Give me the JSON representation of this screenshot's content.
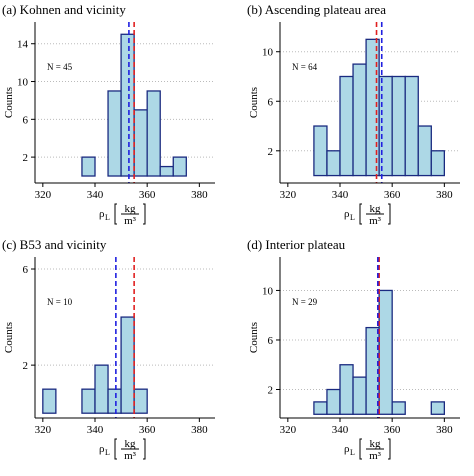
{
  "chart_data": [
    {
      "type": "histogram",
      "title": "(a) Kohnen and vicinity",
      "annotation": "N = 45",
      "ylabel": "Counts",
      "xlabel": {
        "symbol": "ρ",
        "subscript": "L",
        "unit_num": "kg",
        "unit_den": "m³"
      },
      "bins": [
        320,
        325,
        330,
        335,
        340,
        345,
        350,
        355,
        360,
        365,
        370,
        375,
        380,
        385
      ],
      "values": [
        0,
        0,
        0,
        2,
        0,
        9,
        15,
        7,
        9,
        1,
        2,
        0,
        0
      ],
      "vlines": [
        {
          "value": 355,
          "color": "#e02020"
        },
        {
          "value": 353,
          "color": "#2020e0"
        }
      ],
      "xlim": [
        317,
        386
      ],
      "xticks": [
        320,
        340,
        360,
        380
      ],
      "ylim": [
        -0.74,
        16.3
      ],
      "yticks": [
        2,
        6,
        10,
        14
      ],
      "grid": true,
      "fill": "#add8e6",
      "edge": "#1a2a80"
    },
    {
      "type": "histogram",
      "title": "(b) Ascending plateau area",
      "annotation": "N = 64",
      "ylabel": "Counts",
      "xlabel": {
        "symbol": "ρ",
        "subscript": "L",
        "unit_num": "kg",
        "unit_den": "m³"
      },
      "bins": [
        320,
        325,
        330,
        335,
        340,
        345,
        350,
        355,
        360,
        365,
        370,
        375,
        380,
        385
      ],
      "values": [
        0,
        0,
        4,
        2,
        8,
        9,
        11,
        8,
        8,
        8,
        4,
        2,
        0
      ],
      "vlines": [
        {
          "value": 354,
          "color": "#e02020"
        },
        {
          "value": 356,
          "color": "#2020e0"
        }
      ],
      "xlim": [
        317,
        386
      ],
      "xticks": [
        320,
        340,
        360,
        380
      ],
      "ylim": [
        -0.6,
        12.4
      ],
      "yticks": [
        2,
        6,
        10
      ],
      "grid": true,
      "fill": "#add8e6",
      "edge": "#1a2a80"
    },
    {
      "type": "histogram",
      "title": "(c) B53 and vicinity",
      "annotation": "N = 10",
      "ylabel": "Counts",
      "xlabel": {
        "symbol": "ρ",
        "subscript": "L",
        "unit_num": "kg",
        "unit_den": "m³"
      },
      "bins": [
        320,
        325,
        330,
        335,
        340,
        345,
        350,
        355,
        360,
        365,
        370,
        375,
        380,
        385
      ],
      "values": [
        1,
        0,
        0,
        1,
        2,
        1,
        4,
        1,
        0,
        0,
        0,
        0,
        0
      ],
      "vlines": [
        {
          "value": 355,
          "color": "#e02020"
        },
        {
          "value": 348,
          "color": "#2020e0"
        }
      ],
      "xlim": [
        317,
        386
      ],
      "xticks": [
        320,
        340,
        360,
        380
      ],
      "ylim": [
        -0.2,
        6.5
      ],
      "yticks": [
        2,
        6
      ],
      "grid": true,
      "fill": "#add8e6",
      "edge": "#1a2a80"
    },
    {
      "type": "histogram",
      "title": "(d) Interior plateau",
      "annotation": "N = 29",
      "ylabel": "Counts",
      "xlabel": {
        "symbol": "ρ",
        "subscript": "L",
        "unit_num": "kg",
        "unit_den": "m³"
      },
      "bins": [
        320,
        325,
        330,
        335,
        340,
        345,
        350,
        355,
        360,
        365,
        370,
        375,
        380,
        385
      ],
      "values": [
        0,
        0,
        1,
        2,
        4,
        3,
        7,
        10,
        1,
        0,
        0,
        1,
        0
      ],
      "vlines": [
        {
          "value": 355,
          "color": "#e02020"
        },
        {
          "value": 354.5,
          "color": "#2020e0"
        }
      ],
      "xlim": [
        317,
        386
      ],
      "xticks": [
        320,
        340,
        360,
        380
      ],
      "ylim": [
        -0.3,
        12.7
      ],
      "yticks": [
        2,
        6,
        10
      ],
      "grid": true,
      "fill": "#add8e6",
      "edge": "#1a2a80"
    }
  ]
}
